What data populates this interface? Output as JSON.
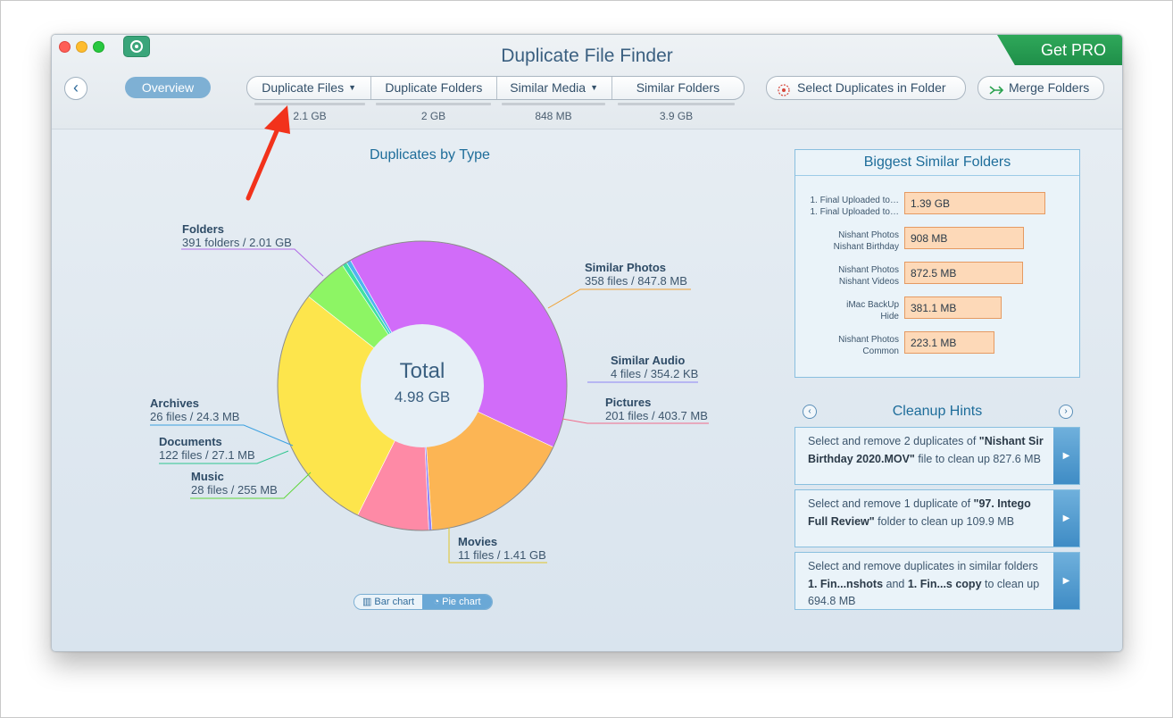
{
  "app": {
    "title": "Duplicate File Finder",
    "get_pro": "Get PRO"
  },
  "toolbar": {
    "back_icon": "chevron-left-icon",
    "overview": "Overview",
    "tabs": [
      {
        "label": "Duplicate Files",
        "size": "2.1 GB",
        "dropdown": true
      },
      {
        "label": "Duplicate Folders",
        "size": "2 GB",
        "dropdown": false
      },
      {
        "label": "Similar Media",
        "size": "848 MB",
        "dropdown": true
      },
      {
        "label": "Similar Folders",
        "size": "3.9 GB",
        "dropdown": false
      }
    ],
    "select_duplicates": "Select Duplicates in Folder",
    "merge_folders": "Merge Folders"
  },
  "chart_data": {
    "type": "pie",
    "title": "Duplicates by Type",
    "center_label": "Total",
    "center_value": "4.98 GB",
    "slices": [
      {
        "name": "Folders",
        "detail": "391 folders / 2.01 GB",
        "gb": 2.01,
        "color": "#d16cf9"
      },
      {
        "name": "Similar Photos",
        "detail": "358 files / 847.8 MB",
        "gb": 0.848,
        "color": "#fcb554"
      },
      {
        "name": "Similar Audio",
        "detail": "4 files / 354.2 KB",
        "gb": 0.00035,
        "color": "#8f84f5"
      },
      {
        "name": "Pictures",
        "detail": "201 files / 403.7 MB",
        "gb": 0.404,
        "color": "#fe8aa6"
      },
      {
        "name": "Movies",
        "detail": "11 files / 1.41 GB",
        "gb": 1.41,
        "color": "#fde54c"
      },
      {
        "name": "Music",
        "detail": "28 files / 255 MB",
        "gb": 0.255,
        "color": "#8df564"
      },
      {
        "name": "Documents",
        "detail": "122 files / 27.1 MB",
        "gb": 0.0271,
        "color": "#3fe0a3"
      },
      {
        "name": "Archives",
        "detail": "26 files / 24.3 MB",
        "gb": 0.0243,
        "color": "#4fb4f0"
      }
    ],
    "toggle": {
      "bar": "Bar chart",
      "pie": "Pie chart",
      "selected": "Pie chart"
    }
  },
  "biggest_similar_folders": {
    "title": "Biggest Similar Folders",
    "items": [
      {
        "name1": "1. Final Uploaded to…",
        "name2": "1. Final Uploaded to…",
        "size": "1.39 GB",
        "value_gb": 1.39
      },
      {
        "name1": "Nishant Photos",
        "name2": "Nishant Birthday",
        "size": "908 MB",
        "value_gb": 0.908
      },
      {
        "name1": "Nishant Photos",
        "name2": "Nishant Videos",
        "size": "872.5 MB",
        "value_gb": 0.8725
      },
      {
        "name1": "iMac BackUp",
        "name2": "Hide",
        "size": "381.1 MB",
        "value_gb": 0.3811
      },
      {
        "name1": "Nishant Photos",
        "name2": "Common",
        "size": "223.1 MB",
        "value_gb": 0.2231
      }
    ]
  },
  "cleanup_hints": {
    "title": "Cleanup Hints",
    "hints": [
      {
        "pre": "Select and remove 2 duplicates of ",
        "bold1": "\"Nishant Sir Birthday 2020.MOV\"",
        "mid": " file to clean up 827.6 MB",
        "bold2": "",
        "post": ""
      },
      {
        "pre": "Select and remove 1 duplicate of ",
        "bold1": "\"97. Intego Full Review\"",
        "mid": " folder to clean up 109.9 MB",
        "bold2": "",
        "post": ""
      },
      {
        "pre": "Select and remove duplicates in similar folders ",
        "bold1": "1. Fin...nshots",
        "mid": " and ",
        "bold2": "1. Fin...s copy",
        "post": " to clean up 694.8 MB"
      }
    ]
  },
  "colors": {
    "accent": "#1e6d9a",
    "pro": "#27a151",
    "annotation_arrow": "#f2321b"
  }
}
